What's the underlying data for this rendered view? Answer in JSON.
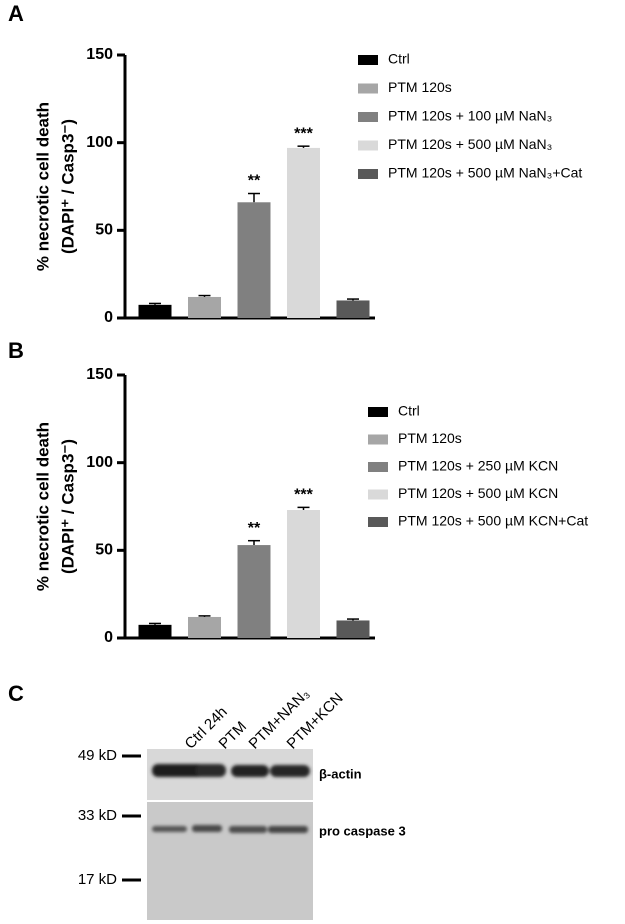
{
  "chart_data": [
    {
      "type": "bar",
      "label": "A",
      "ylabel": [
        "% necrotic cell death",
        "(DAPI⁺ / Casp3⁻)"
      ],
      "ylim": [
        0,
        150
      ],
      "yticks": [
        0,
        50,
        100,
        150
      ],
      "series": [
        {
          "name": "Ctrl",
          "color": "#000000",
          "values": [
            7.5
          ],
          "errors": [
            0.8
          ]
        },
        {
          "name": "PTM 120s",
          "color": "#a6a6a6",
          "values": [
            12
          ],
          "errors": [
            0.8
          ]
        },
        {
          "name": "PTM 120s + 100 µM  NaN₃",
          "color": "#808080",
          "values": [
            66
          ],
          "errors": [
            5
          ],
          "annotation": "**"
        },
        {
          "name": "PTM 120s + 500 µM  NaN₃",
          "color": "#d9d9d9",
          "values": [
            97
          ],
          "errors": [
            1
          ],
          "annotation": "***"
        },
        {
          "name": "PTM 120s + 500 µM  NaN₃+Cat",
          "color": "#595959",
          "values": [
            10
          ],
          "errors": [
            0.8
          ]
        }
      ]
    },
    {
      "type": "bar",
      "label": "B",
      "ylabel": [
        "% necrotic cell death",
        "(DAPI⁺ / Casp3⁻)"
      ],
      "ylim": [
        0,
        150
      ],
      "yticks": [
        0,
        50,
        100,
        150
      ],
      "series": [
        {
          "name": "Ctrl",
          "color": "#000000",
          "values": [
            7.5
          ],
          "errors": [
            0.8
          ]
        },
        {
          "name": "PTM 120s",
          "color": "#a6a6a6",
          "values": [
            12
          ],
          "errors": [
            0.6
          ]
        },
        {
          "name": "PTM 120s + 250 µM  KCN",
          "color": "#808080",
          "values": [
            53
          ],
          "errors": [
            2.5
          ],
          "annotation": "**"
        },
        {
          "name": "PTM 120s + 500 µM  KCN",
          "color": "#d9d9d9",
          "values": [
            73
          ],
          "errors": [
            1.5
          ],
          "annotation": "***"
        },
        {
          "name": "PTM 120s + 500 µM  KCN+Cat",
          "color": "#595959",
          "values": [
            10
          ],
          "errors": [
            0.8
          ]
        }
      ]
    }
  ],
  "blot": {
    "label": "C",
    "lanes": [
      "Ctrl 24h",
      "PTM",
      "PTM+NAN₃",
      "PTM+KCN"
    ],
    "markers": [
      "49 kD",
      "33 kD",
      "17 kD"
    ],
    "bands": [
      "β-actin",
      "pro caspase 3"
    ]
  }
}
